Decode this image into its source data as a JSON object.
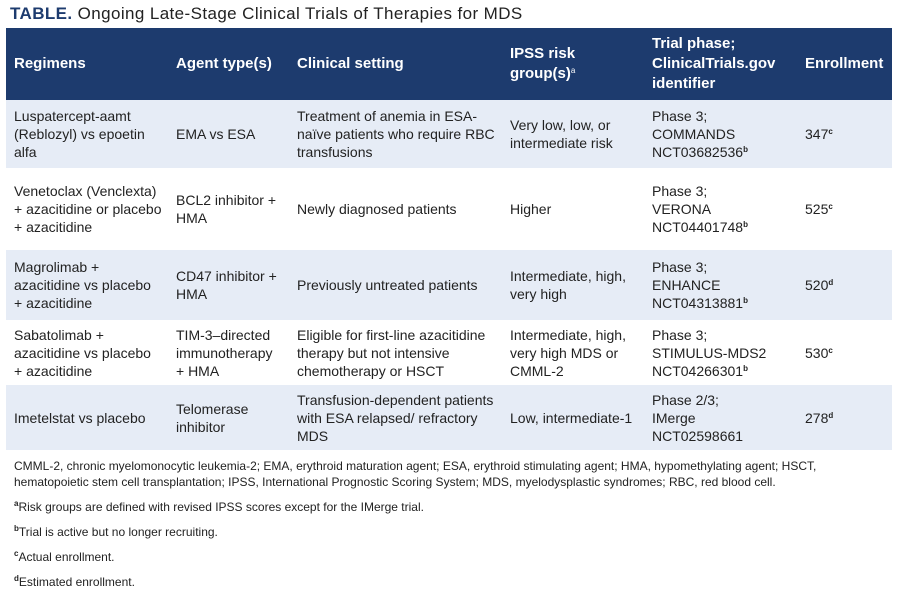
{
  "header": {
    "label": "TABLE.",
    "title": "Ongoing Late-Stage Clinical Trials of Therapies for MDS"
  },
  "table": {
    "columns": [
      "Regimens",
      "Agent type(s)",
      "Clinical setting",
      {
        "text": "IPSS risk group(s)",
        "note": "a"
      },
      "Trial phase; ClinicalTrials.gov identifier",
      "Enrollment"
    ],
    "rows": [
      {
        "regimen": "Luspatercept-aamt (Reblozyl) vs epoetin alfa",
        "agent": "EMA vs ESA",
        "setting": "Treatment of anemia in ESA-naïve patients who require RBC transfusions",
        "risk": "Very low, low, or intermediate risk",
        "trial": {
          "phase": "Phase 3;",
          "name": "COMMANDS",
          "id": "NCT03682536",
          "note": "b"
        },
        "enrollment": {
          "value": 347,
          "note": "c"
        }
      },
      {
        "regimen": "Venetoclax (Venclexta) + azacitidine or placebo + azacitidine",
        "agent": "BCL2 inhibitor + HMA",
        "setting": "Newly diagnosed patients",
        "risk": "Higher",
        "trial": {
          "phase": "Phase 3;",
          "name": "VERONA",
          "id": "NCT04401748",
          "note": "b"
        },
        "enrollment": {
          "value": 525,
          "note": "c"
        }
      },
      {
        "regimen": "Magrolimab + azacitidine vs placebo + azacitidine",
        "agent": "CD47 inhibitor + HMA",
        "setting": "Previously untreated patients",
        "risk": "Intermediate, high, very high",
        "trial": {
          "phase": "Phase 3;",
          "name": "ENHANCE",
          "id": "NCT04313881",
          "note": "b"
        },
        "enrollment": {
          "value": 520,
          "note": "d"
        }
      },
      {
        "regimen": "Sabatolimab + azacitidine vs placebo + azacitidine",
        "agent": "TIM-3–directed immunotherapy + HMA",
        "setting": "Eligible for first-line azacitidine therapy but not intensive chemotherapy or HSCT",
        "risk": "Intermediate, high, very high MDS or CMML-2",
        "trial": {
          "phase": "Phase 3;",
          "name": "STIMULUS-MDS2",
          "id": "NCT04266301",
          "note": "b"
        },
        "enrollment": {
          "value": 530,
          "note": "c"
        }
      },
      {
        "regimen": "Imetelstat vs placebo",
        "agent": "Telomerase inhibitor",
        "setting": "Transfusion-dependent patients with ESA relapsed/ refractory MDS",
        "risk": "Low, intermediate-1",
        "trial": {
          "phase": "Phase 2/3;",
          "name": "IMerge",
          "id": "NCT02598661"
        },
        "enrollment": {
          "value": 278,
          "note": "d"
        }
      }
    ]
  },
  "footnotes": {
    "abbreviations": "CMML-2, chronic myelomonocytic leukemia-2; EMA, erythroid maturation agent; ESA, erythroid stimulating agent; HMA, hypomethylating agent; HSCT, hematopoietic stem cell transplantation; IPSS, International Prognostic Scoring System; MDS, myelodysplastic syndromes; RBC, red blood cell.",
    "notes": [
      {
        "mark": "a",
        "text": "Risk groups are defined with revised IPSS scores except for the IMerge trial."
      },
      {
        "mark": "b",
        "text": "Trial is active but no longer recruiting."
      },
      {
        "mark": "c",
        "text": "Actual enrollment."
      },
      {
        "mark": "d",
        "text": "Estimated enrollment."
      }
    ]
  }
}
